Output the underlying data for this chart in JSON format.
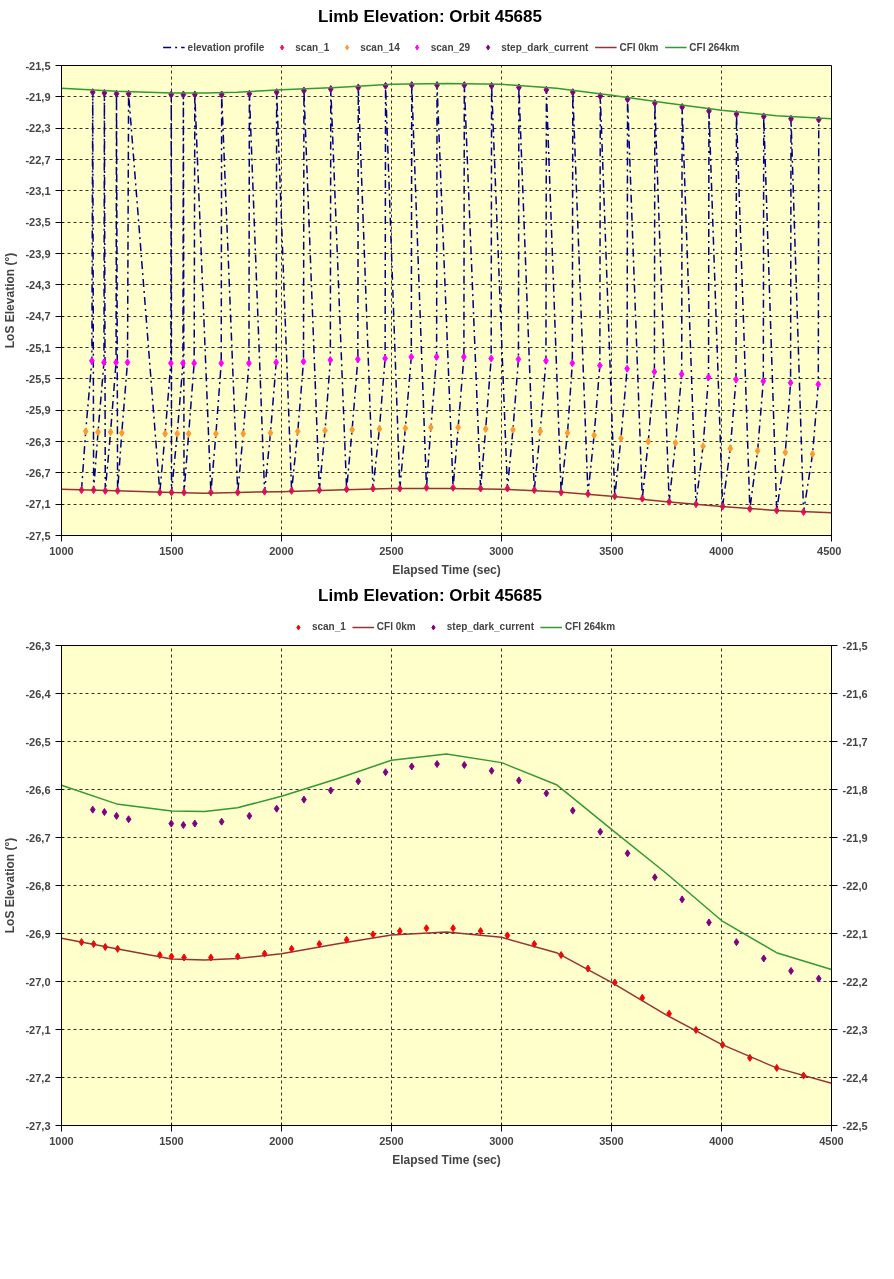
{
  "chart_data": [
    {
      "type": "scatter",
      "title": "Limb Elevation: Orbit 45685",
      "xlabel": "Elapsed Time (sec)",
      "ylabel": "LoS Elevation (°)",
      "grid": true,
      "legend": "top",
      "marker": "diamond",
      "xlim": [
        1000,
        4500
      ],
      "xticks": [
        1000,
        1500,
        2000,
        2500,
        3000,
        3500,
        4000,
        4500
      ],
      "ylim": [
        -27.5,
        -21.5
      ],
      "yticks": [
        {
          "value": -27.5,
          "label": "-27,5"
        },
        {
          "value": -27.1,
          "label": "-27,1"
        },
        {
          "value": -26.7,
          "label": "-26,7"
        },
        {
          "value": -26.3,
          "label": "-26,3"
        },
        {
          "value": -25.9,
          "label": "-25,9"
        },
        {
          "value": -25.5,
          "label": "-25,5"
        },
        {
          "value": -25.1,
          "label": "-25,1"
        },
        {
          "value": -24.7,
          "label": "-24,7"
        },
        {
          "value": -24.3,
          "label": "-24,3"
        },
        {
          "value": -23.9,
          "label": "-23,9"
        },
        {
          "value": -23.5,
          "label": "-23,5"
        },
        {
          "value": -23.1,
          "label": "-23,1"
        },
        {
          "value": -22.7,
          "label": "-22,7"
        },
        {
          "value": -22.3,
          "label": "-22,3"
        },
        {
          "value": -21.9,
          "label": "-21,9"
        },
        {
          "value": -21.5,
          "label": "-21,5"
        }
      ],
      "series": [
        {
          "name": "elevation profile",
          "type": "line",
          "marker": "none",
          "line_style": "dashed",
          "color": "#000080",
          "x": [
            1091,
            1110,
            1138,
            1142,
            1146,
            1166,
            1193,
            1195,
            1199,
            1223,
            1248,
            1250,
            1255,
            1274,
            1300,
            1305,
            1447,
            1471,
            1497,
            1499,
            1500,
            1526,
            1552,
            1554,
            1557,
            1578,
            1603,
            1606,
            1679,
            1702,
            1726,
            1728,
            1801,
            1826,
            1852,
            1854,
            1923,
            1950,
            1976,
            1978,
            2046,
            2074,
            2100,
            2102,
            2172,
            2198,
            2222,
            2224,
            2296,
            2321,
            2347,
            2349,
            2416,
            2445,
            2471,
            2473,
            2538,
            2563,
            2590,
            2592,
            2659,
            2679,
            2705,
            2707,
            2780,
            2803,
            2829,
            2831,
            2905,
            2928,
            2953,
            2955,
            3027,
            3052,
            3077,
            3079,
            3149,
            3176,
            3202,
            3204,
            3271,
            3300,
            3322,
            3324,
            3393,
            3421,
            3447,
            3449,
            3515,
            3543,
            3571,
            3573,
            3640,
            3667,
            3695,
            3697,
            3762,
            3791,
            3819,
            3821,
            3884,
            3916,
            3941,
            3943,
            4005,
            4040,
            4066,
            4068,
            4129,
            4164,
            4190,
            4192,
            4251,
            4290,
            4314,
            4316,
            4373,
            4414,
            4440,
            4442
          ],
          "values": [
            -26.92,
            -26.17,
            -25.27,
            -21.84,
            -26.92,
            -26.18,
            -25.29,
            -21.85,
            -26.93,
            -26.18,
            -25.29,
            -21.86,
            -26.93,
            -26.19,
            -25.29,
            -21.86,
            -26.95,
            -26.2,
            -25.3,
            -21.87,
            -26.95,
            -26.2,
            -25.3,
            -21.87,
            -26.95,
            -26.2,
            -25.3,
            -21.87,
            -26.95,
            -26.2,
            -25.3,
            -21.87,
            -26.95,
            -26.2,
            -25.3,
            -21.86,
            -26.94,
            -26.19,
            -25.29,
            -21.84,
            -26.93,
            -26.17,
            -25.28,
            -21.82,
            -26.92,
            -26.16,
            -25.26,
            -21.8,
            -26.91,
            -26.15,
            -25.25,
            -21.78,
            -26.9,
            -26.14,
            -25.24,
            -21.76,
            -26.9,
            -26.13,
            -25.22,
            -21.75,
            -26.89,
            -26.12,
            -25.22,
            -21.75,
            -26.89,
            -26.12,
            -25.22,
            -21.75,
            -26.9,
            -26.14,
            -25.24,
            -21.76,
            -26.9,
            -26.15,
            -25.25,
            -21.78,
            -26.92,
            -26.17,
            -25.27,
            -21.81,
            -26.95,
            -26.19,
            -25.3,
            -21.84,
            -26.97,
            -26.22,
            -25.33,
            -21.89,
            -27.0,
            -26.26,
            -25.37,
            -21.93,
            -27.03,
            -26.3,
            -25.41,
            -21.98,
            -27.07,
            -26.32,
            -25.44,
            -22.03,
            -27.1,
            -26.36,
            -25.48,
            -22.08,
            -27.13,
            -26.39,
            -25.51,
            -22.12,
            -27.16,
            -26.42,
            -25.53,
            -22.15,
            -27.18,
            -26.44,
            -25.55,
            -22.18,
            -27.2,
            -26.46,
            -25.57,
            -22.19
          ]
        },
        {
          "name": "scan_1",
          "color": "#ff0066",
          "x": [
            1091,
            1146,
            1199,
            1255,
            1447,
            1500,
            1557,
            1679,
            1801,
            1923,
            2046,
            2172,
            2296,
            2416,
            2538,
            2659,
            2780,
            2905,
            3027,
            3149,
            3271,
            3393,
            3515,
            3640,
            3762,
            3884,
            4005,
            4129,
            4251,
            4373
          ],
          "values": [
            -26.92,
            -26.92,
            -26.93,
            -26.93,
            -26.95,
            -26.95,
            -26.95,
            -26.95,
            -26.95,
            -26.94,
            -26.93,
            -26.92,
            -26.91,
            -26.9,
            -26.9,
            -26.89,
            -26.89,
            -26.9,
            -26.9,
            -26.92,
            -26.95,
            -26.97,
            -27.0,
            -27.03,
            -27.07,
            -27.1,
            -27.13,
            -27.16,
            -27.18,
            -27.2
          ]
        },
        {
          "name": "scan_14",
          "color": "#ff9933",
          "x": [
            1110,
            1166,
            1223,
            1274,
            1471,
            1526,
            1578,
            1702,
            1826,
            1950,
            2074,
            2198,
            2321,
            2445,
            2563,
            2679,
            2803,
            2928,
            3052,
            3176,
            3300,
            3421,
            3543,
            3667,
            3791,
            3916,
            4040,
            4164,
            4290,
            4414
          ],
          "values": [
            -26.17,
            -26.18,
            -26.18,
            -26.19,
            -26.2,
            -26.2,
            -26.2,
            -26.2,
            -26.2,
            -26.19,
            -26.17,
            -26.16,
            -26.15,
            -26.14,
            -26.13,
            -26.12,
            -26.12,
            -26.14,
            -26.15,
            -26.17,
            -26.19,
            -26.22,
            -26.26,
            -26.3,
            -26.32,
            -26.36,
            -26.39,
            -26.42,
            -26.44,
            -26.46
          ]
        },
        {
          "name": "scan_29",
          "color": "#ff00ff",
          "x": [
            1138,
            1193,
            1248,
            1300,
            1497,
            1552,
            1603,
            1726,
            1852,
            1976,
            2100,
            2222,
            2347,
            2471,
            2590,
            2705,
            2829,
            2953,
            3077,
            3202,
            3322,
            3447,
            3571,
            3695,
            3819,
            3941,
            4066,
            4190,
            4314,
            4440
          ],
          "values": [
            -25.27,
            -25.29,
            -25.29,
            -25.29,
            -25.3,
            -25.3,
            -25.3,
            -25.3,
            -25.3,
            -25.29,
            -25.28,
            -25.26,
            -25.25,
            -25.24,
            -25.22,
            -25.22,
            -25.22,
            -25.24,
            -25.25,
            -25.27,
            -25.3,
            -25.33,
            -25.37,
            -25.41,
            -25.44,
            -25.48,
            -25.51,
            -25.53,
            -25.55,
            -25.57
          ]
        },
        {
          "name": "step_dark_current",
          "color": "#800080",
          "x": [
            1142,
            1195,
            1250,
            1305,
            1499,
            1554,
            1606,
            1728,
            1854,
            1978,
            2102,
            2224,
            2349,
            2473,
            2592,
            2707,
            2831,
            2955,
            3079,
            3204,
            3324,
            3449,
            3573,
            3697,
            3821,
            3943,
            4068,
            4192,
            4316,
            4442
          ],
          "values": [
            -21.84,
            -21.85,
            -21.86,
            -21.86,
            -21.87,
            -21.87,
            -21.87,
            -21.87,
            -21.86,
            -21.84,
            -21.82,
            -21.8,
            -21.78,
            -21.76,
            -21.75,
            -21.75,
            -21.75,
            -21.76,
            -21.78,
            -21.81,
            -21.84,
            -21.89,
            -21.93,
            -21.98,
            -22.03,
            -22.08,
            -22.12,
            -22.15,
            -22.18,
            -22.19
          ]
        },
        {
          "name": "CFI 0km",
          "type": "line",
          "color": "#993333",
          "x": [
            1000,
            1250,
            1500,
            1650,
            1800,
            2000,
            2250,
            2500,
            2750,
            3000,
            3250,
            3500,
            3750,
            4000,
            4250,
            4500
          ],
          "marker": "none",
          "values": [
            -26.91,
            -26.93,
            -26.95,
            -26.96,
            -26.95,
            -26.94,
            -26.92,
            -26.9,
            -26.9,
            -26.91,
            -26.94,
            -27.0,
            -27.07,
            -27.13,
            -27.18,
            -27.21
          ]
        },
        {
          "name": "CFI 264km",
          "type": "line",
          "color": "#339933",
          "x": [
            1000,
            1250,
            1500,
            1650,
            1800,
            2000,
            2250,
            2500,
            2750,
            3000,
            3250,
            3500,
            3750,
            4000,
            4250,
            4500
          ],
          "marker": "none",
          "values": [
            -21.79,
            -21.83,
            -21.85,
            -21.85,
            -21.84,
            -21.81,
            -21.78,
            -21.74,
            -21.73,
            -21.74,
            -21.79,
            -21.88,
            -21.98,
            -22.07,
            -22.14,
            -22.18
          ]
        }
      ]
    },
    {
      "type": "scatter",
      "title": "Limb Elevation: Orbit 45685",
      "xlabel": "Elapsed Time (sec)",
      "ylabel": "LoS Elevation (°)",
      "grid": true,
      "legend": "top",
      "marker": "diamond",
      "xlim": [
        1000,
        4500
      ],
      "xticks": [
        1000,
        1500,
        2000,
        2500,
        3000,
        3500,
        4000,
        4500
      ],
      "ylim": [
        -27.3,
        -26.3
      ],
      "yticks": [
        {
          "value": -27.3,
          "label": "-27,3"
        },
        {
          "value": -27.2,
          "label": "-27,2"
        },
        {
          "value": -27.1,
          "label": "-27,1"
        },
        {
          "value": -27.0,
          "label": "-27,0"
        },
        {
          "value": -26.9,
          "label": "-26,9"
        },
        {
          "value": -26.8,
          "label": "-26,8"
        },
        {
          "value": -26.7,
          "label": "-26,7"
        },
        {
          "value": -26.6,
          "label": "-26,6"
        },
        {
          "value": -26.5,
          "label": "-26,5"
        },
        {
          "value": -26.4,
          "label": "-26,4"
        },
        {
          "value": -26.3,
          "label": "-26,3"
        }
      ],
      "y2lim": [
        -22.5,
        -21.5
      ],
      "y2ticks": [
        {
          "value": -22.5,
          "label": "-22,5"
        },
        {
          "value": -22.4,
          "label": "-22,4"
        },
        {
          "value": -22.3,
          "label": "-22,3"
        },
        {
          "value": -22.2,
          "label": "-22,2"
        },
        {
          "value": -22.1,
          "label": "-22,1"
        },
        {
          "value": -22.0,
          "label": "-22,0"
        },
        {
          "value": -21.9,
          "label": "-21,9"
        },
        {
          "value": -21.8,
          "label": "-21,8"
        },
        {
          "value": -21.7,
          "label": "-21,7"
        },
        {
          "value": -21.6,
          "label": "-21,6"
        },
        {
          "value": -21.5,
          "label": "-21,5"
        }
      ],
      "series": [
        {
          "name": "scan_1",
          "color": "#ff0000",
          "x": [
            1091,
            1146,
            1199,
            1255,
            1447,
            1500,
            1557,
            1679,
            1801,
            1923,
            2046,
            2172,
            2296,
            2416,
            2538,
            2659,
            2780,
            2905,
            3027,
            3149,
            3271,
            3393,
            3515,
            3640,
            3762,
            3884,
            4005,
            4129,
            4251,
            4373
          ],
          "values": [
            -26.918,
            -26.922,
            -26.928,
            -26.932,
            -26.945,
            -26.948,
            -26.95,
            -26.95,
            -26.948,
            -26.942,
            -26.932,
            -26.922,
            -26.913,
            -26.902,
            -26.895,
            -26.889,
            -26.889,
            -26.895,
            -26.904,
            -26.922,
            -26.945,
            -26.973,
            -27.002,
            -27.034,
            -27.067,
            -27.101,
            -27.132,
            -27.159,
            -27.18,
            -27.196
          ]
        },
        {
          "name": "CFI 0km",
          "type": "line",
          "color": "#993333",
          "x": [
            1000,
            1250,
            1500,
            1650,
            1800,
            2000,
            2250,
            2500,
            2750,
            3000,
            3250,
            3500,
            3750,
            4000,
            4250,
            4500
          ],
          "marker": "none",
          "values": [
            -26.91,
            -26.932,
            -26.953,
            -26.955,
            -26.952,
            -26.942,
            -26.922,
            -26.903,
            -26.897,
            -26.908,
            -26.94,
            -27.002,
            -27.07,
            -27.131,
            -27.18,
            -27.212
          ]
        },
        {
          "name": "step_dark_current",
          "axis": "y2",
          "color": "#800080",
          "x": [
            1142,
            1195,
            1250,
            1305,
            1499,
            1554,
            1606,
            1728,
            1854,
            1978,
            2102,
            2224,
            2349,
            2473,
            2592,
            2707,
            2831,
            2955,
            3079,
            3204,
            3324,
            3449,
            3573,
            3697,
            3821,
            3943,
            4068,
            4192,
            4316,
            4442
          ],
          "values": [
            -21.842,
            -21.847,
            -21.855,
            -21.862,
            -21.871,
            -21.874,
            -21.871,
            -21.867,
            -21.855,
            -21.84,
            -21.821,
            -21.802,
            -21.783,
            -21.764,
            -21.752,
            -21.747,
            -21.749,
            -21.761,
            -21.781,
            -21.808,
            -21.844,
            -21.888,
            -21.933,
            -21.983,
            -22.029,
            -22.077,
            -22.118,
            -22.152,
            -22.178,
            -22.194
          ]
        },
        {
          "name": "CFI 264km",
          "type": "line",
          "axis": "y2",
          "color": "#339933",
          "x": [
            1000,
            1250,
            1500,
            1650,
            1800,
            2000,
            2250,
            2500,
            2750,
            3000,
            3250,
            3500,
            3750,
            4000,
            4250,
            4500
          ],
          "marker": "none",
          "values": [
            -21.791,
            -21.83,
            -21.845,
            -21.846,
            -21.838,
            -21.814,
            -21.778,
            -21.739,
            -21.726,
            -21.744,
            -21.79,
            -21.883,
            -21.975,
            -22.073,
            -22.14,
            -22.175
          ]
        }
      ]
    }
  ]
}
